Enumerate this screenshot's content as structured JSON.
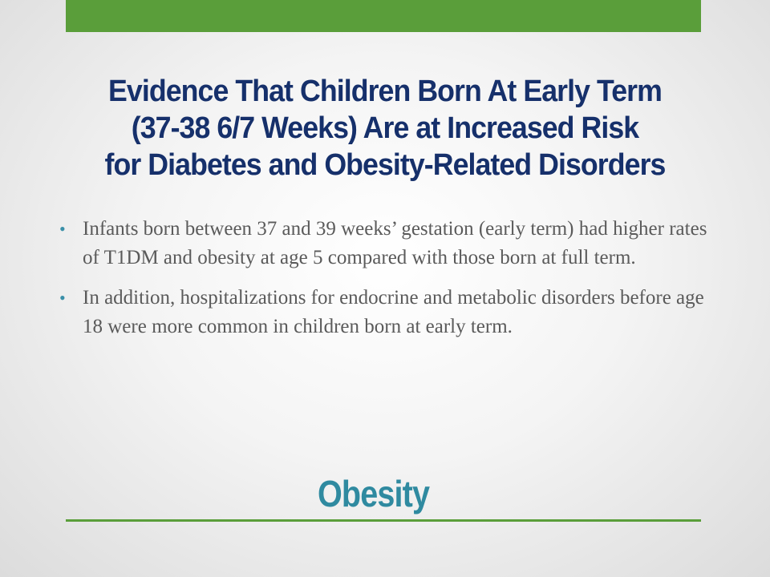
{
  "slide": {
    "title_lines": [
      "Evidence That Children Born At Early Term",
      "(37-38 6/7 Weeks) Are at Increased Risk",
      "for Diabetes  and Obesity-Related Disorders"
    ],
    "bullets": [
      "Infants born between 37 and 39 weeks’ gestation (early term) had higher rates of T1DM and obesity at age 5 compared with those born at full term.",
      "In addition, hospitalizations for endocrine and metabolic disorders before age 18 were more common in children born at early term."
    ],
    "bullet_symbol": "•",
    "subtitle": "Obesity"
  },
  "colors": {
    "accent_green": "#5a9e3a",
    "title_navy": "#16306b",
    "subtitle_teal": "#2f8aa0",
    "body_gray": "#5a5a5a"
  }
}
